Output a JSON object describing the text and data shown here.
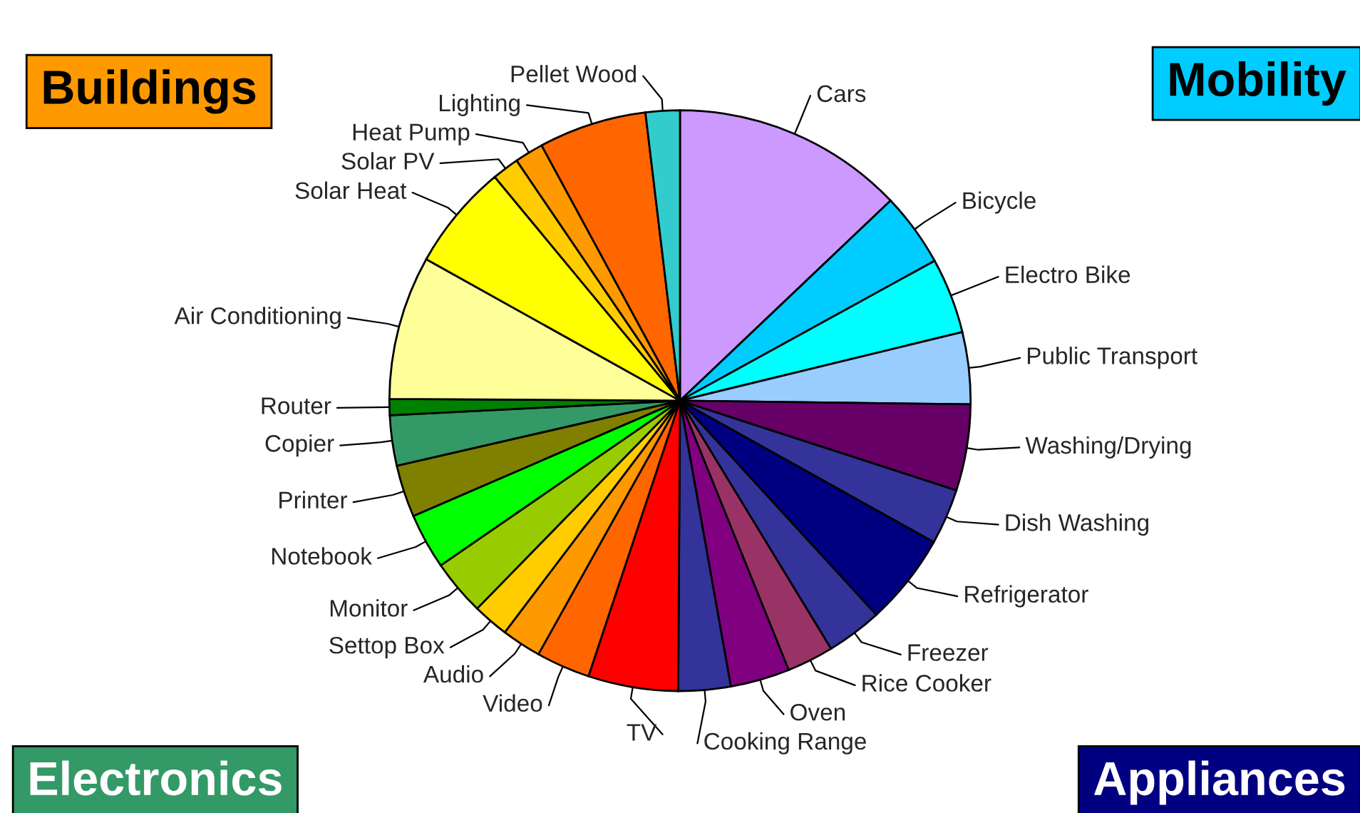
{
  "chart_data": {
    "type": "pie",
    "categories": [
      "Cars",
      "Bicycle",
      "Electro Bike",
      "Public Transport",
      "Washing/Drying",
      "Dish Washing",
      "Refrigerator",
      "Freezer",
      "Rice Cooker",
      "Oven",
      "Cooking Range",
      "TV",
      "Video",
      "Audio",
      "Settop Box",
      "Monitor",
      "Notebook",
      "Printer",
      "Copier",
      "Router",
      "Air Conditioning",
      "Solar Heat",
      "Solar PV",
      "Heat Pump",
      "Lighting",
      "Pellet Wood"
    ],
    "values": [
      12.9,
      4.1,
      4.2,
      4.0,
      4.8,
      3.1,
      5.1,
      3.1,
      2.6,
      3.3,
      2.9,
      5.0,
      3.0,
      2.2,
      2.0,
      3.1,
      3.1,
      2.9,
      2.8,
      0.9,
      8.0,
      5.9,
      1.5,
      1.6,
      6.0,
      1.9
    ],
    "colors": [
      "#cc99ff",
      "#00ccff",
      "#00ffff",
      "#99ccff",
      "#660066",
      "#333399",
      "#000080",
      "#333399",
      "#993366",
      "#800080",
      "#333399",
      "#ff0000",
      "#ff6600",
      "#ff9900",
      "#ffcc00",
      "#99cc00",
      "#00ff00",
      "#808000",
      "#339966",
      "#008000",
      "#ffff99",
      "#ffff00",
      "#ffcc00",
      "#ff9900",
      "#ff6600",
      "#33cccc"
    ],
    "annotations": [
      "Buildings",
      "Mobility",
      "Electronics",
      "Appliances"
    ]
  }
}
